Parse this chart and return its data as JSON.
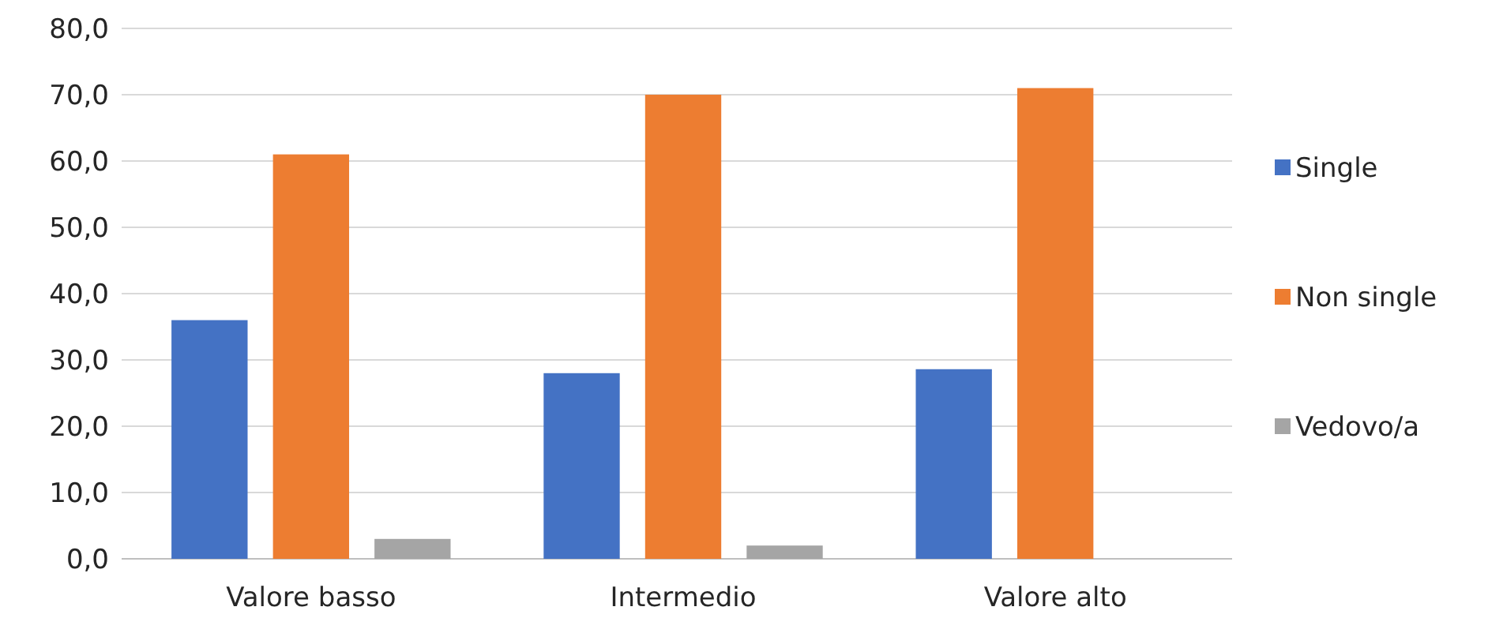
{
  "chart_data": {
    "type": "bar",
    "categories": [
      "Valore basso",
      "Intermedio",
      "Valore alto"
    ],
    "series": [
      {
        "name": "Single",
        "color": "#4472c4",
        "values": [
          36,
          28,
          28.6
        ]
      },
      {
        "name": "Non single",
        "color": "#ed7d31",
        "values": [
          61,
          70,
          71
        ]
      },
      {
        "name": "Vedovo/a",
        "color": "#a5a5a5",
        "values": [
          3,
          2,
          0
        ]
      }
    ],
    "ylim": [
      0,
      80
    ],
    "yticks": [
      {
        "value": 0,
        "label": "0,0"
      },
      {
        "value": 10,
        "label": "10,0"
      },
      {
        "value": 20,
        "label": "20,0"
      },
      {
        "value": 30,
        "label": "30,0"
      },
      {
        "value": 40,
        "label": "40,0"
      },
      {
        "value": 50,
        "label": "50,0"
      },
      {
        "value": 60,
        "label": "60,0"
      },
      {
        "value": 70,
        "label": "70,0"
      },
      {
        "value": 80,
        "label": "80,0"
      }
    ],
    "grid": "y",
    "legend": "right"
  }
}
